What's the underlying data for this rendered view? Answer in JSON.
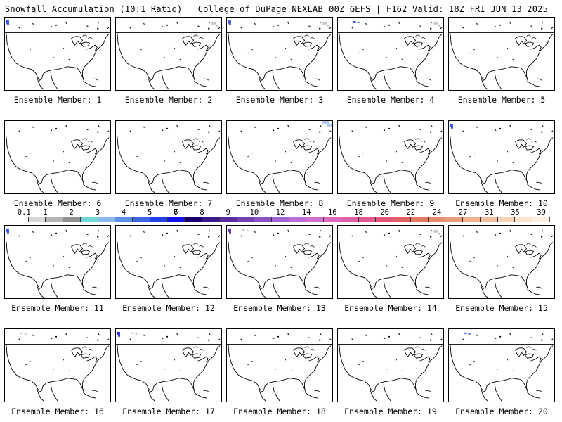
{
  "header": {
    "left": "Snowfall Accumulation (10:1 Ratio) | College of DuPage NEXLAB",
    "right": "00Z GEFS | F162 Valid: 18Z FRI JUN 13 2025"
  },
  "panels": [
    {
      "label": "Ensemble Member: 1",
      "snow": [
        {
          "at": "nw-corner",
          "color": "#3355ff"
        }
      ]
    },
    {
      "label": "Ensemble Member: 2",
      "snow": [
        {
          "at": "northeast",
          "color": "#c8c8c8"
        }
      ]
    },
    {
      "label": "Ensemble Member: 3",
      "snow": [
        {
          "at": "nw-corner",
          "color": "#4a5bd6"
        },
        {
          "at": "northeast",
          "color": "#c8c8c8"
        }
      ]
    },
    {
      "label": "Ensemble Member: 4",
      "snow": [
        {
          "at": "nw-mid",
          "color": "#3355ff"
        },
        {
          "at": "northeast",
          "color": "#c8c8c8"
        }
      ]
    },
    {
      "label": "Ensemble Member: 5",
      "snow": []
    },
    {
      "label": "Ensemble Member: 6",
      "snow": []
    },
    {
      "label": "Ensemble Member: 7",
      "snow": []
    },
    {
      "label": "Ensemble Member: 8",
      "snow": [
        {
          "at": "ne-corner",
          "color": "#b0c8e8"
        }
      ]
    },
    {
      "label": "Ensemble Member: 9",
      "snow": []
    },
    {
      "label": "Ensemble Member: 10",
      "snow": [
        {
          "at": "nw-corner",
          "color": "#3355ff"
        }
      ]
    },
    {
      "label": "Ensemble Member: 11",
      "snow": [
        {
          "at": "nw-corner",
          "color": "#3355ff"
        }
      ]
    },
    {
      "label": "Ensemble Member: 12",
      "snow": []
    },
    {
      "label": "Ensemble Member: 13",
      "snow": [
        {
          "at": "nw-corner",
          "color": "#6a2fb0"
        },
        {
          "at": "nw-mid",
          "color": "#c8c8c8"
        }
      ]
    },
    {
      "label": "Ensemble Member: 14",
      "snow": [
        {
          "at": "northeast",
          "color": "#c8c8c8"
        }
      ]
    },
    {
      "label": "Ensemble Member: 15",
      "snow": []
    },
    {
      "label": "Ensemble Member: 16",
      "snow": [
        {
          "at": "nw-mid",
          "color": "#c8c8c8"
        }
      ]
    },
    {
      "label": "Ensemble Member: 17",
      "snow": [
        {
          "at": "nw-corner",
          "color": "#2a2ae0"
        },
        {
          "at": "nw-mid",
          "color": "#c8c8c8"
        }
      ]
    },
    {
      "label": "Ensemble Member: 18",
      "snow": []
    },
    {
      "label": "Ensemble Member: 19",
      "snow": []
    },
    {
      "label": "Ensemble Member: 20",
      "snow": [
        {
          "at": "nw-mid",
          "color": "#3355ff"
        }
      ]
    }
  ],
  "colorbar": {
    "labels": [
      "0.1",
      "1",
      "2",
      "3",
      "4",
      "5",
      "6",
      "7",
      "8",
      "9",
      "10",
      "12",
      "14",
      "16",
      "18",
      "20",
      "22",
      "24",
      "27",
      "31",
      "35",
      "39"
    ],
    "colors": [
      "#ffffff",
      "#d8d8d8",
      "#b4b4b4",
      "#909090",
      "#70d8d8",
      "#8ab8f0",
      "#5a90e8",
      "#3a66e0",
      "#2040e8",
      "#1010e8",
      "#1a006e",
      "#3c1a8c",
      "#5a2ca0",
      "#7440b4",
      "#8a52c4",
      "#a264d0",
      "#bc6ed8",
      "#d070d0",
      "#dc68c0",
      "#e060a8",
      "#e2588e",
      "#e05578",
      "#e06064",
      "#e47860",
      "#e88c6c",
      "#ec9e7a",
      "#f0b08e",
      "#f2c0a0",
      "#f6d2b8",
      "#fae4d0",
      "#fff0e2"
    ]
  }
}
